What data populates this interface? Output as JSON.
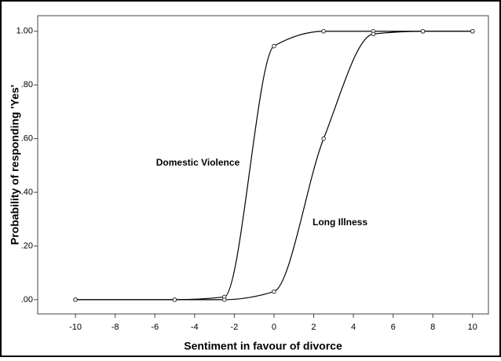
{
  "chart_data": {
    "type": "line",
    "x_label": "Sentiment in favour of divorce",
    "y_label": "Probability of responding 'Yes'",
    "x": [
      -10,
      -5,
      -2.5,
      0,
      2.5,
      5,
      7.5,
      10
    ],
    "series": [
      {
        "name": "Domestic Violence",
        "color": "#000000",
        "values": [
          0,
          0,
          0.01,
          0.945,
          1.0,
          1.0,
          1.0,
          1.0
        ]
      },
      {
        "name": "Long Illness",
        "color": "#000000",
        "values": [
          0,
          0,
          0,
          0.03,
          0.6,
          0.99,
          1.0,
          1.0
        ]
      }
    ],
    "xlim": [
      -11.9,
      10.8
    ],
    "ylim": [
      -0.053,
      1.058
    ],
    "xticks": [
      -10,
      -8,
      -6,
      -4,
      -2,
      0,
      2,
      4,
      6,
      8,
      10
    ],
    "yticks": [
      {
        "value": 0,
        "label": ".00"
      },
      {
        "value": 0.2,
        "label": ".20"
      },
      {
        "value": 0.4,
        "label": ".40"
      },
      {
        "value": 0.6,
        "label": ".60"
      },
      {
        "value": 0.8,
        "label": ".80"
      },
      {
        "value": 1.0,
        "label": "1.00"
      }
    ],
    "grid": false
  }
}
